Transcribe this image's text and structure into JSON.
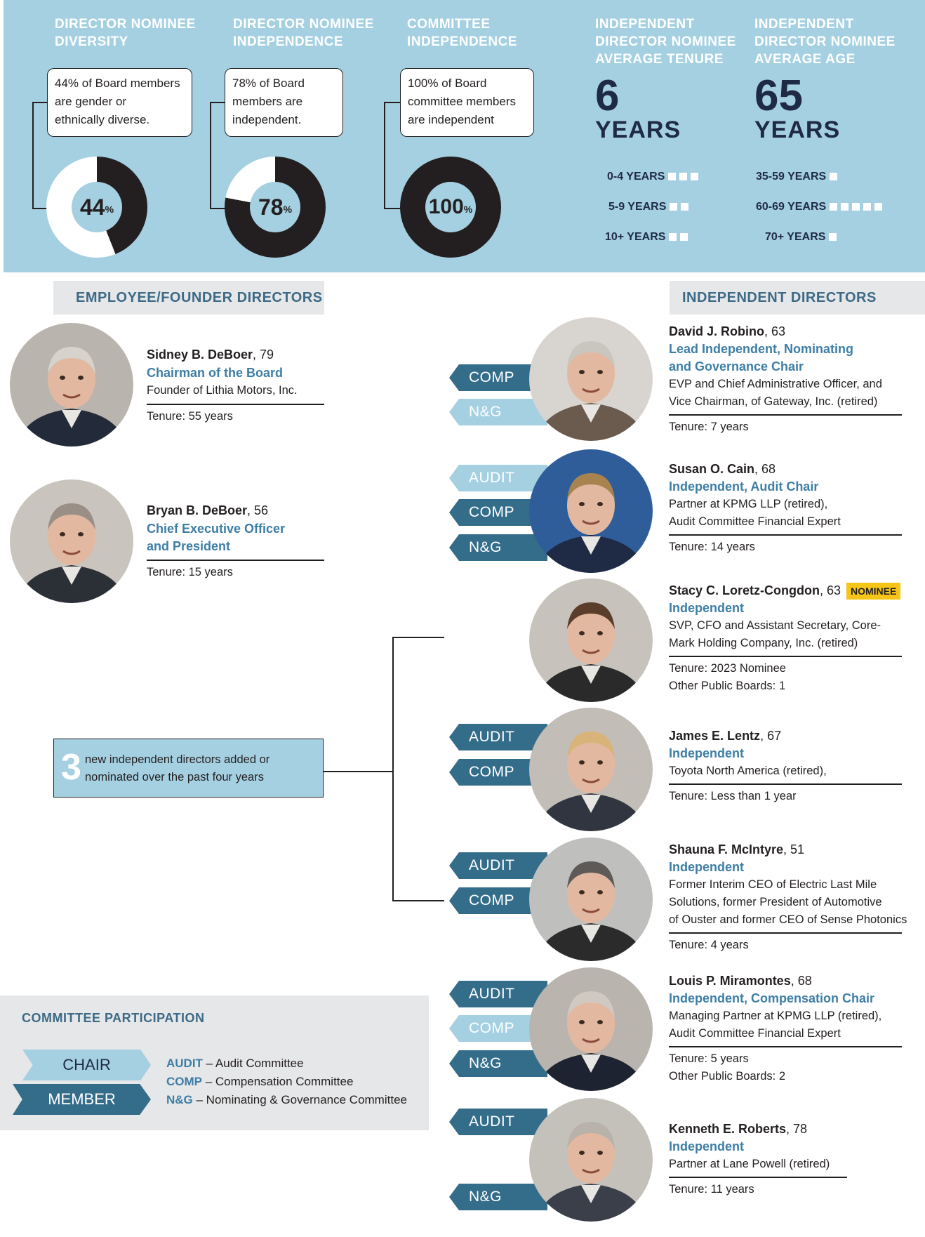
{
  "stats": {
    "diversity": {
      "heading": [
        "DIRECTOR NOMINEE",
        "DIVERSITY"
      ],
      "callout": [
        "44% of Board members",
        "are gender or",
        "ethnically diverse."
      ],
      "value": 44,
      "label": "44",
      "pct": "%"
    },
    "independence": {
      "heading": [
        "DIRECTOR NOMINEE",
        "INDEPENDENCE"
      ],
      "callout": [
        "78% of Board",
        "members are",
        "independent."
      ],
      "value": 78,
      "label": "78",
      "pct": "%"
    },
    "committee": {
      "heading": [
        "COMMITTEE",
        "INDEPENDENCE"
      ],
      "callout": [
        "100% of Board",
        "committee members",
        "are independent"
      ],
      "value": 100,
      "label": "100",
      "pct": "%"
    },
    "tenure": {
      "heading": [
        "INDEPENDENT",
        "DIRECTOR NOMINEE",
        "AVERAGE TENURE"
      ],
      "number": "6",
      "unit": "YEARS",
      "tiers": [
        {
          "label": "0-4 YEARS",
          "count": 3
        },
        {
          "label": "5-9 YEARS",
          "count": 2
        },
        {
          "label": "10+ YEARS",
          "count": 2
        }
      ]
    },
    "age": {
      "heading": [
        "INDEPENDENT",
        "DIRECTOR NOMINEE",
        "AVERAGE AGE"
      ],
      "number": "65",
      "unit": "YEARS",
      "tiers": [
        {
          "label": "35-59 YEARS",
          "count": 1
        },
        {
          "label": "60-69 YEARS",
          "count": 5
        },
        {
          "label": "70+ YEARS",
          "count": 1
        }
      ]
    }
  },
  "colors": {
    "panel": "#a5d0e2",
    "donut_dark": "#231f20",
    "donut_light": "#ffffff",
    "member": "#346d8a",
    "chair": "#a5d0e2",
    "accent_text": "#3d7ea6",
    "nominee_badge": "#f5c518"
  },
  "sections": {
    "employee": "EMPLOYEE/FOUNDER DIRECTORS",
    "independent": "INDEPENDENT DIRECTORS"
  },
  "employee_directors": [
    {
      "name": "Sidney B. DeBoer",
      "age": ", 79",
      "role": [
        "Chairman of the Board"
      ],
      "desc": [
        "Founder of Lithia Motors, Inc."
      ],
      "tenure": [
        "Tenure: 55 years"
      ],
      "photo": "portrait-photo"
    },
    {
      "name": "Bryan B. DeBoer",
      "age": ", 56",
      "role": [
        "Chief Executive Officer",
        "and President"
      ],
      "desc": [],
      "tenure": [
        "Tenure: 15 years"
      ],
      "photo": "portrait-photo"
    }
  ],
  "independent_directors": [
    {
      "name": "David J. Robino",
      "age": ", 63",
      "role": [
        "Lead Independent, Nominating",
        "and Governance Chair"
      ],
      "desc": [
        "EVP and Chief Administrative Officer, and",
        "Vice Chairman, of Gateway, Inc. (retired)"
      ],
      "tenure": [
        "Tenure: 7 years"
      ],
      "committees": [
        {
          "label": "COMP",
          "type": "member"
        },
        {
          "label": "N&G",
          "type": "chair"
        }
      ]
    },
    {
      "name": "Susan O. Cain",
      "age": ", 68",
      "role": [
        "Independent, Audit Chair"
      ],
      "desc": [
        "Partner at KPMG LLP (retired),",
        "Audit Committee Financial Expert"
      ],
      "tenure": [
        "Tenure: 14 years"
      ],
      "committees": [
        {
          "label": "AUDIT",
          "type": "chair"
        },
        {
          "label": "COMP",
          "type": "member"
        },
        {
          "label": "N&G",
          "type": "member"
        }
      ]
    },
    {
      "name": "Stacy C. Loretz-Congdon",
      "age": ", 63",
      "badge": "NOMINEE",
      "role": [
        "Independent"
      ],
      "desc": [
        "SVP, CFO and Assistant Secretary, Core-",
        "Mark Holding Company, Inc. (retired)"
      ],
      "tenure": [
        "Tenure: 2023 Nominee",
        "Other Public Boards: 1"
      ],
      "committees": []
    },
    {
      "name": "James E. Lentz",
      "age": ", 67",
      "role": [
        "Independent"
      ],
      "desc": [
        "Toyota North America (retired),"
      ],
      "tenure": [
        "Tenure: Less than 1 year"
      ],
      "committees": [
        {
          "label": "AUDIT",
          "type": "member"
        },
        {
          "label": "COMP",
          "type": "member"
        }
      ]
    },
    {
      "name": "Shauna F. McIntyre",
      "age": ", 51",
      "role": [
        "Independent"
      ],
      "desc": [
        "Former Interim CEO of Electric Last Mile",
        "Solutions, former President of Automotive",
        "of Ouster and former CEO of Sense Photonics"
      ],
      "tenure": [
        "Tenure: 4 years"
      ],
      "committees": [
        {
          "label": "AUDIT",
          "type": "member"
        },
        {
          "label": "COMP",
          "type": "member"
        }
      ]
    },
    {
      "name": "Louis P. Miramontes",
      "age": ", 68",
      "role": [
        "Independent, Compensation Chair"
      ],
      "desc": [
        "Managing Partner at KPMG LLP (retired),",
        "Audit Committee Financial Expert"
      ],
      "tenure": [
        "Tenure: 5 years",
        "Other Public Boards: 2"
      ],
      "committees": [
        {
          "label": "AUDIT",
          "type": "member"
        },
        {
          "label": "COMP",
          "type": "chair"
        },
        {
          "label": "N&G",
          "type": "member"
        }
      ]
    },
    {
      "name": "Kenneth E. Roberts",
      "age": ", 78",
      "role": [
        "Independent"
      ],
      "desc": [
        "Partner at Lane Powell (retired)"
      ],
      "tenure": [
        "Tenure: 11 years"
      ],
      "committees": [
        {
          "label": "AUDIT",
          "type": "member"
        },
        {
          "label": "N&G",
          "type": "member"
        }
      ]
    }
  ],
  "new_directors": {
    "number": "3",
    "text": [
      "new independent directors added or",
      "nominated over the past four years"
    ]
  },
  "legend": {
    "title": "COMMITTEE PARTICIPATION",
    "chair": "CHAIR",
    "member": "MEMBER",
    "items": [
      {
        "abbr": "AUDIT",
        "text": " – Audit Committee"
      },
      {
        "abbr": "COMP",
        "text": " – Compensation Committee"
      },
      {
        "abbr": "N&G",
        "text": " – Nominating & Governance Committee"
      }
    ]
  }
}
